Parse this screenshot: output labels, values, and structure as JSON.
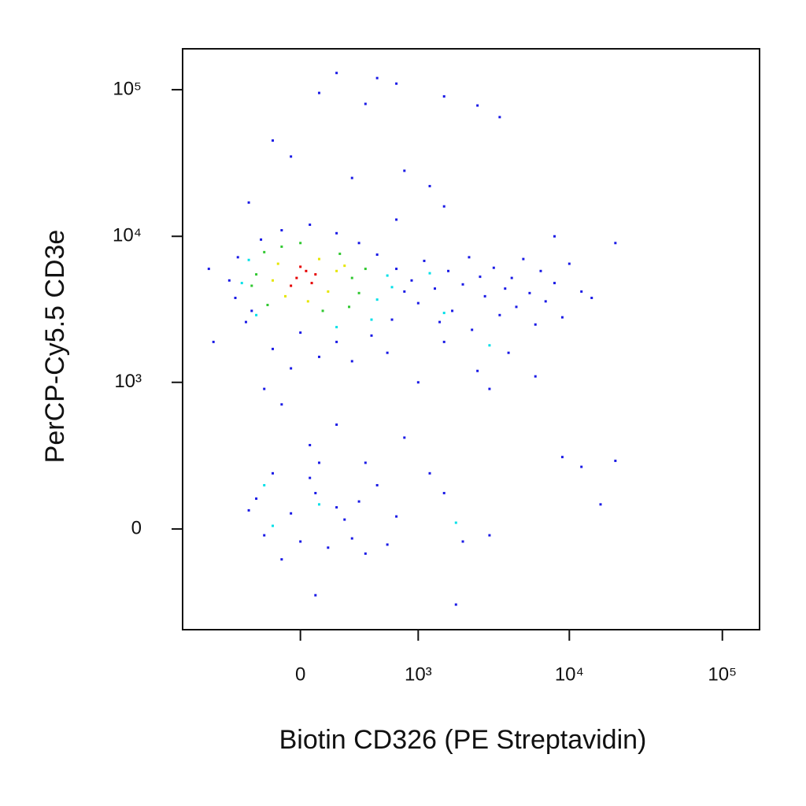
{
  "chart_data": {
    "type": "scatter",
    "x_label": "Biotin CD326 (PE Streptavidin)",
    "y_label": "PerCP-Cy5.5  CD3e",
    "xscale": "asinh",
    "yscale": "asinh",
    "xlim": [
      -1000,
      175000
    ],
    "ylim": [
      -470,
      190000
    ],
    "xticks": [
      0,
      {
        "value": 1000,
        "label": "10³"
      },
      {
        "value": 10000,
        "label": "10⁴"
      },
      {
        "value": 100000,
        "label": "10⁵"
      }
    ],
    "yticks": [
      0,
      {
        "value": 1000,
        "label": "10³"
      },
      {
        "value": 10000,
        "label": "10⁴"
      },
      {
        "value": 100000,
        "label": "10⁵"
      }
    ],
    "series": [
      {
        "color": "#1a1ae6",
        "x": [
          -450,
          -400,
          -380,
          -320,
          -220,
          -100,
          50,
          200,
          350,
          500,
          700,
          800,
          650,
          450,
          200,
          0,
          -150,
          -280,
          100,
          300,
          -50,
          600,
          -600,
          -650,
          900,
          1000,
          1100,
          1300,
          1400,
          1600,
          1700,
          2000,
          2200,
          2300,
          2600,
          2800,
          3200,
          3500,
          3800,
          4200,
          4500,
          5000,
          5500,
          6000,
          6500,
          7000,
          8000,
          9000,
          10000,
          12000,
          14000,
          20000,
          2500,
          4000,
          1500,
          3000,
          6000,
          1000,
          8000,
          700,
          1500,
          -100,
          200,
          50,
          -200,
          800,
          400,
          -250,
          -150,
          -50,
          0,
          80,
          150,
          250,
          -200,
          350,
          500,
          700,
          100,
          -100,
          400,
          50,
          300,
          -300,
          600,
          200,
          1200,
          1500,
          3000,
          9000,
          12000,
          16000,
          20000,
          2000,
          80,
          1800,
          200,
          500,
          700,
          1500,
          2500,
          3500,
          100,
          -150,
          -50,
          400,
          800,
          1200,
          -300,
          300
        ],
        "values": [
          5000,
          3800,
          7200,
          2600,
          9500,
          11000,
          12000,
          10500,
          9000,
          7500,
          6000,
          4200,
          2700,
          2100,
          1900,
          2200,
          1700,
          3100,
          1500,
          1400,
          1250,
          1600,
          1900,
          6000,
          5000,
          3500,
          6800,
          4400,
          2600,
          5800,
          3100,
          4700,
          7200,
          2300,
          5300,
          3900,
          6100,
          2900,
          4400,
          5200,
          3300,
          7000,
          4100,
          2500,
          5800,
          3600,
          4800,
          2800,
          6500,
          4200,
          3800,
          9000,
          1200,
          1600,
          1900,
          900,
          1100,
          1000,
          10000,
          13000,
          16000,
          700,
          500,
          350,
          900,
          400,
          250,
          100,
          200,
          50,
          -40,
          120,
          -60,
          30,
          -20,
          90,
          150,
          40,
          250,
          -100,
          -80,
          180,
          -30,
          60,
          -50,
          70,
          200,
          120,
          -20,
          280,
          230,
          80,
          260,
          -40,
          -250,
          -300,
          130000,
          120000,
          110000,
          90000,
          78000,
          65000,
          95000,
          45000,
          35000,
          80000,
          28000,
          22000,
          17000,
          25000
        ]
      },
      {
        "color": "#00e0e8",
        "x": [
          -350,
          -300,
          500,
          600,
          450,
          -250,
          650,
          200,
          1500,
          3000,
          1200,
          -200,
          100,
          1800,
          -150
        ],
        "values": [
          4800,
          6900,
          3700,
          5400,
          2700,
          2900,
          4500,
          2400,
          3000,
          1800,
          5600,
          150,
          80,
          20,
          10
        ]
      },
      {
        "color": "#30c830",
        "x": [
          -250,
          -200,
          300,
          350,
          -180,
          220,
          120,
          -100,
          280,
          -280,
          400,
          0
        ],
        "values": [
          5500,
          7800,
          5200,
          4100,
          3400,
          7600,
          3100,
          8500,
          3300,
          4600,
          6000,
          9000
        ]
      },
      {
        "color": "#e6e600",
        "x": [
          -120,
          150,
          100,
          -80,
          200,
          40,
          -150,
          250
        ],
        "values": [
          6500,
          4200,
          7000,
          3900,
          5800,
          3600,
          5000,
          6300
        ]
      },
      {
        "color": "#e60000",
        "x": [
          -20,
          30,
          60,
          0,
          80,
          -50
        ],
        "values": [
          5200,
          5800,
          4800,
          6200,
          5500,
          4600
        ]
      }
    ]
  }
}
